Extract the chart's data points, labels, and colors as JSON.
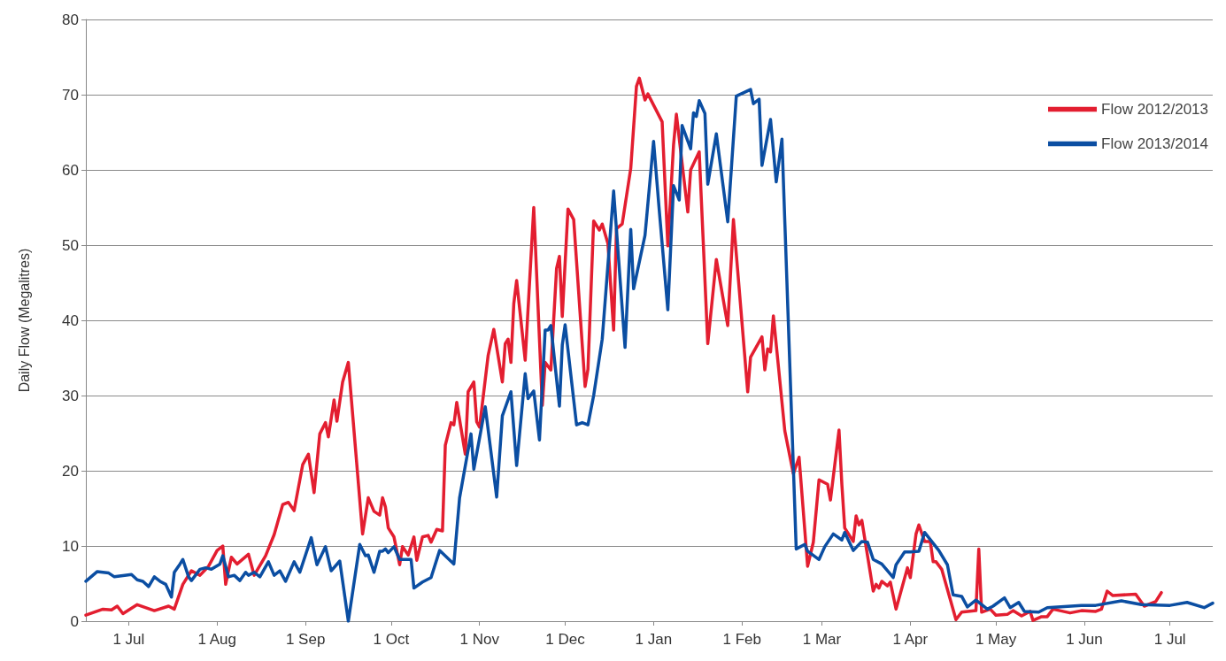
{
  "chart_data": {
    "type": "line",
    "ylabel": "Daily Flow (Megalitres)",
    "xlim": [
      "2012-06-16",
      "2013-07-16"
    ],
    "xticks": [
      {
        "value": "2012-07-01",
        "label": "1 Jul"
      },
      {
        "value": "2012-08-01",
        "label": "1 Aug"
      },
      {
        "value": "2012-09-01",
        "label": "1 Sep"
      },
      {
        "value": "2012-10-01",
        "label": "1 Oct"
      },
      {
        "value": "2012-11-01",
        "label": "1 Nov"
      },
      {
        "value": "2012-12-01",
        "label": "1 Dec"
      },
      {
        "value": "2013-01-01",
        "label": "1 Jan"
      },
      {
        "value": "2013-02-01",
        "label": "1 Feb"
      },
      {
        "value": "2013-03-01",
        "label": "1 Mar"
      },
      {
        "value": "2013-04-01",
        "label": "1 Apr"
      },
      {
        "value": "2013-05-01",
        "label": "1 May"
      },
      {
        "value": "2013-06-01",
        "label": "1 Jun"
      },
      {
        "value": "2013-07-01",
        "label": "1 Jul"
      }
    ],
    "ylim": [
      0,
      80
    ],
    "yticks": [
      0,
      10,
      20,
      30,
      40,
      50,
      60,
      70,
      80
    ],
    "grid": "y",
    "legend": "top right",
    "marker": "none",
    "line_style": "solid",
    "series": [
      {
        "name": "Flow 2012/2013",
        "color": "#e31e30",
        "x": [
          "2012-06-16",
          "2012-06-22",
          "2012-06-25",
          "2012-06-27",
          "2012-06-29",
          "2012-07-04",
          "2012-07-10",
          "2012-07-15",
          "2012-07-17",
          "2012-07-20",
          "2012-07-23",
          "2012-07-26",
          "2012-07-29",
          "2012-08-01",
          "2012-08-03",
          "2012-08-04",
          "2012-08-06",
          "2012-08-08",
          "2012-08-12",
          "2012-08-14",
          "2012-08-18",
          "2012-08-21",
          "2012-08-24",
          "2012-08-26",
          "2012-08-28",
          "2012-08-31",
          "2012-09-02",
          "2012-09-04",
          "2012-09-06",
          "2012-09-08",
          "2012-09-09",
          "2012-09-11",
          "2012-09-12",
          "2012-09-14",
          "2012-09-16",
          "2012-09-21",
          "2012-09-23",
          "2012-09-25",
          "2012-09-27",
          "2012-09-28",
          "2012-09-29",
          "2012-09-30",
          "2012-10-02",
          "2012-10-04",
          "2012-10-05",
          "2012-10-07",
          "2012-10-09",
          "2012-10-10",
          "2012-10-12",
          "2012-10-14",
          "2012-10-15",
          "2012-10-17",
          "2012-10-19",
          "2012-10-20",
          "2012-10-22",
          "2012-10-23",
          "2012-10-24",
          "2012-10-27",
          "2012-10-28",
          "2012-10-30",
          "2012-10-31",
          "2012-11-01",
          "2012-11-04",
          "2012-11-06",
          "2012-11-09",
          "2012-11-10",
          "2012-11-11",
          "2012-11-12",
          "2012-11-13",
          "2012-11-14",
          "2012-11-17",
          "2012-11-20",
          "2012-11-23",
          "2012-11-24",
          "2012-11-26",
          "2012-11-28",
          "2012-11-29",
          "2012-11-30",
          "2012-12-02",
          "2012-12-04",
          "2012-12-08",
          "2012-12-09",
          "2012-12-11",
          "2012-12-13",
          "2012-12-14",
          "2012-12-16",
          "2012-12-18",
          "2012-12-19",
          "2012-12-21",
          "2012-12-24",
          "2012-12-26",
          "2012-12-27",
          "2012-12-29",
          "2012-12-30",
          "2013-01-04",
          "2013-01-06",
          "2013-01-08",
          "2013-01-09",
          "2013-01-13",
          "2013-01-14",
          "2013-01-17",
          "2013-01-20",
          "2013-01-23",
          "2013-01-27",
          "2013-01-29",
          "2013-02-03",
          "2013-02-04",
          "2013-02-08",
          "2013-02-09",
          "2013-02-10",
          "2013-02-11",
          "2013-02-12",
          "2013-02-16",
          "2013-02-19",
          "2013-02-21",
          "2013-02-24",
          "2013-02-26",
          "2013-02-28",
          "2013-03-03",
          "2013-03-04",
          "2013-03-07",
          "2013-03-08",
          "2013-03-09",
          "2013-03-12",
          "2013-03-13",
          "2013-03-14",
          "2013-03-15",
          "2013-03-19",
          "2013-03-20",
          "2013-03-21",
          "2013-03-22",
          "2013-03-24",
          "2013-03-25",
          "2013-03-27",
          "2013-03-31",
          "2013-04-01",
          "2013-04-03",
          "2013-04-04",
          "2013-04-06",
          "2013-04-08",
          "2013-04-09",
          "2013-04-10",
          "2013-04-12",
          "2013-04-17",
          "2013-04-19",
          "2013-04-24",
          "2013-04-25",
          "2013-04-26",
          "2013-04-29",
          "2013-05-01",
          "2013-05-05",
          "2013-05-07",
          "2013-05-10",
          "2013-05-13",
          "2013-05-14",
          "2013-05-17",
          "2013-05-19",
          "2013-05-21",
          "2013-05-27",
          "2013-05-31",
          "2013-06-05",
          "2013-06-07",
          "2013-06-09",
          "2013-06-11",
          "2013-06-19",
          "2013-06-22",
          "2013-06-26",
          "2013-06-28"
        ],
        "values": [
          0.8,
          1.6,
          1.5,
          2.0,
          1.0,
          2.2,
          1.4,
          2.0,
          1.6,
          4.9,
          6.7,
          6.1,
          7.3,
          9.4,
          10.0,
          4.9,
          8.5,
          7.6,
          8.9,
          6.1,
          8.7,
          11.5,
          15.5,
          15.8,
          14.7,
          20.8,
          22.2,
          17.1,
          24.9,
          26.4,
          24.5,
          29.4,
          26.6,
          31.8,
          34.4,
          11.6,
          16.4,
          14.6,
          14.1,
          16.4,
          15.2,
          12.4,
          11.2,
          7.5,
          9.9,
          8.8,
          11.2,
          8.1,
          11.2,
          11.4,
          10.5,
          12.2,
          12.0,
          23.4,
          26.4,
          26.1,
          29.1,
          22.2,
          30.5,
          31.8,
          26.5,
          25.8,
          35.3,
          38.8,
          31.8,
          36.9,
          37.5,
          34.4,
          42.2,
          45.3,
          34.7,
          55.0,
          28.7,
          34.4,
          33.4,
          46.9,
          48.5,
          40.5,
          54.8,
          53.4,
          31.2,
          33.5,
          53.2,
          52.0,
          52.8,
          50.2,
          38.7,
          52.2,
          52.8,
          60.2,
          71.1,
          72.2,
          69.3,
          70.1,
          66.4,
          49.9,
          63.3,
          67.4,
          54.4,
          60.0,
          62.4,
          36.9,
          48.1,
          39.3,
          53.4,
          30.5,
          35.1,
          37.8,
          33.4,
          36.2,
          35.8,
          40.6,
          25.3,
          19.6,
          21.8,
          7.3,
          10.5,
          18.8,
          18.2,
          16.1,
          25.4,
          18.2,
          12.4,
          10.6,
          14.0,
          12.8,
          13.4,
          4.0,
          4.9,
          4.4,
          5.3,
          4.7,
          5.2,
          1.6,
          7.1,
          5.8,
          11.6,
          12.8,
          10.6,
          10.6,
          7.9,
          7.9,
          6.9,
          0.2,
          1.2,
          1.4,
          9.6,
          1.2,
          1.6,
          0.8,
          0.9,
          1.4,
          0.7,
          1.3,
          0.1,
          0.6,
          0.6,
          1.6,
          1.1,
          1.4,
          1.3,
          1.6,
          4.0,
          3.4,
          3.6,
          2.0,
          2.6,
          3.8
        ]
      },
      {
        "name": "Flow 2013/2014",
        "color": "#0b4ea2",
        "x": [
          "2012-06-16",
          "2012-06-20",
          "2012-06-24",
          "2012-06-26",
          "2012-07-02",
          "2012-07-04",
          "2012-07-06",
          "2012-07-08",
          "2012-07-10",
          "2012-07-12",
          "2012-07-14",
          "2012-07-16",
          "2012-07-17",
          "2012-07-19",
          "2012-07-20",
          "2012-07-22",
          "2012-07-23",
          "2012-07-26",
          "2012-07-28",
          "2012-07-30",
          "2012-08-02",
          "2012-08-03",
          "2012-08-05",
          "2012-08-07",
          "2012-08-09",
          "2012-08-11",
          "2012-08-12",
          "2012-08-14",
          "2012-08-16",
          "2012-08-19",
          "2012-08-21",
          "2012-08-23",
          "2012-08-25",
          "2012-08-28",
          "2012-08-30",
          "2012-09-03",
          "2012-09-05",
          "2012-09-08",
          "2012-09-10",
          "2012-09-13",
          "2012-09-16",
          "2012-09-20",
          "2012-09-22",
          "2012-09-23",
          "2012-09-25",
          "2012-09-27",
          "2012-09-28",
          "2012-09-29",
          "2012-09-30",
          "2012-10-02",
          "2012-10-04",
          "2012-10-08",
          "2012-10-09",
          "2012-10-12",
          "2012-10-15",
          "2012-10-18",
          "2012-10-23",
          "2012-10-25",
          "2012-10-29",
          "2012-10-30",
          "2012-11-03",
          "2012-11-07",
          "2012-11-09",
          "2012-11-12",
          "2012-11-14",
          "2012-11-17",
          "2012-11-18",
          "2012-11-20",
          "2012-11-22",
          "2012-11-24",
          "2012-11-25",
          "2012-11-26",
          "2012-11-29",
          "2012-11-30",
          "2012-12-01",
          "2012-12-05",
          "2012-12-07",
          "2012-12-09",
          "2012-12-11",
          "2012-12-14",
          "2012-12-18",
          "2012-12-22",
          "2012-12-24",
          "2012-12-25",
          "2012-12-29",
          "2013-01-01",
          "2013-01-03",
          "2013-01-06",
          "2013-01-08",
          "2013-01-10",
          "2013-01-11",
          "2013-01-14",
          "2013-01-15",
          "2013-01-16",
          "2013-01-17",
          "2013-01-19",
          "2013-01-20",
          "2013-01-23",
          "2013-01-27",
          "2013-01-30",
          "2013-02-04",
          "2013-02-05",
          "2013-02-07",
          "2013-02-08",
          "2013-02-11",
          "2013-02-13",
          "2013-02-15",
          "2013-02-20",
          "2013-02-23",
          "2013-02-24",
          "2013-02-28",
          "2013-03-02",
          "2013-03-05",
          "2013-03-08",
          "2013-03-09",
          "2013-03-12",
          "2013-03-15",
          "2013-03-17",
          "2013-03-19",
          "2013-03-22",
          "2013-03-26",
          "2013-03-27",
          "2013-03-30",
          "2013-04-01",
          "2013-04-04",
          "2013-04-06",
          "2013-04-11",
          "2013-04-14",
          "2013-04-16",
          "2013-04-19",
          "2013-04-21",
          "2013-04-24",
          "2013-04-28",
          "2013-04-30",
          "2013-05-04",
          "2013-05-06",
          "2013-05-09",
          "2013-05-11",
          "2013-05-16",
          "2013-05-19",
          "2013-05-31",
          "2013-06-05",
          "2013-06-14",
          "2013-06-21",
          "2013-07-01",
          "2013-07-07",
          "2013-07-13",
          "2013-07-16"
        ],
        "values": [
          5.3,
          6.6,
          6.4,
          5.9,
          6.2,
          5.5,
          5.3,
          4.6,
          5.9,
          5.3,
          4.9,
          3.2,
          6.5,
          7.6,
          8.2,
          5.9,
          5.4,
          6.9,
          7.1,
          6.9,
          7.6,
          8.7,
          5.9,
          6.1,
          5.4,
          6.5,
          6.1,
          6.5,
          5.9,
          7.9,
          6.1,
          6.7,
          5.3,
          7.9,
          6.5,
          11.1,
          7.5,
          9.9,
          6.7,
          8.0,
          0,
          10.2,
          8.7,
          8.8,
          6.5,
          9.3,
          9.3,
          9.6,
          9.1,
          9.9,
          8.2,
          8.2,
          4.4,
          5.2,
          5.8,
          9.4,
          7.6,
          16.4,
          24.9,
          20.2,
          28.5,
          16.5,
          27.3,
          30.5,
          20.7,
          32.9,
          29.6,
          30.6,
          24.1,
          38.7,
          38.7,
          39.3,
          28.6,
          36.7,
          39.4,
          26.1,
          26.4,
          26.1,
          30.0,
          37.5,
          57.2,
          36.4,
          52.1,
          44.2,
          51.3,
          63.8,
          54.6,
          41.4,
          57.9,
          56.0,
          65.9,
          62.8,
          67.6,
          67.1,
          69.2,
          67.5,
          58.1,
          64.8,
          53.1,
          69.8,
          70.7,
          68.8,
          69.4,
          60.6,
          66.7,
          58.4,
          64.1,
          9.6,
          10.2,
          9.3,
          8.2,
          9.9,
          11.6,
          10.8,
          11.8,
          9.4,
          10.6,
          10.5,
          8.2,
          7.6,
          5.8,
          7.5,
          9.2,
          9.2,
          9.3,
          11.8,
          9.4,
          7.5,
          3.5,
          3.3,
          1.9,
          2.8,
          1.6,
          2.0,
          3.1,
          1.8,
          2.5,
          1.3,
          1.2,
          1.8,
          2.1,
          2.1,
          2.7,
          2.2,
          2.1,
          2.5,
          1.8,
          2.4
        ]
      }
    ]
  }
}
